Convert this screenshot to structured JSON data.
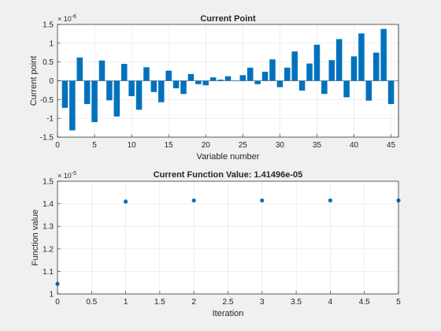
{
  "chart_data": [
    {
      "type": "bar",
      "title": "Current Point",
      "xlabel": "Variable number",
      "ylabel": "Current point",
      "exponent_base": "× 10",
      "exponent": "-6",
      "xlim": [
        0,
        46
      ],
      "ylim": [
        -1.5,
        1.5
      ],
      "xticks": [
        0,
        5,
        10,
        15,
        20,
        25,
        30,
        35,
        40,
        45
      ],
      "yticks": [
        -1.5,
        -1,
        -0.5,
        0,
        0.5,
        1,
        1.5
      ],
      "ytick_labels": [
        "-1.5",
        "-1",
        "-0.5",
        "0",
        "0.5",
        "1",
        "1.5"
      ],
      "grid": true,
      "color": "#0072BD",
      "x": [
        1,
        2,
        3,
        4,
        5,
        6,
        7,
        8,
        9,
        10,
        11,
        12,
        13,
        14,
        15,
        16,
        17,
        18,
        19,
        20,
        21,
        22,
        23,
        24,
        25,
        26,
        27,
        28,
        29,
        30,
        31,
        32,
        33,
        34,
        35,
        36,
        37,
        38,
        39,
        40,
        41,
        42,
        43,
        44,
        45
      ],
      "values": [
        -0.72,
        -1.32,
        0.62,
        -0.62,
        -1.1,
        0.54,
        -0.52,
        -0.95,
        0.45,
        -0.41,
        -0.77,
        0.36,
        -0.3,
        -0.57,
        0.27,
        -0.2,
        -0.35,
        0.18,
        -0.09,
        -0.12,
        0.09,
        0.03,
        0.12,
        0.01,
        0.15,
        0.35,
        -0.09,
        0.24,
        0.57,
        -0.17,
        0.35,
        0.78,
        -0.26,
        0.46,
        0.96,
        -0.35,
        0.55,
        1.11,
        -0.44,
        0.65,
        1.26,
        -0.53,
        0.75,
        1.38,
        -0.62
      ]
    },
    {
      "type": "scatter",
      "title": "Current Function Value: 1.41496e-05",
      "xlabel": "Iteration",
      "ylabel": "Function value",
      "exponent_base": "× 10",
      "exponent": "-5",
      "xlim": [
        0,
        5
      ],
      "ylim": [
        1.0,
        1.5
      ],
      "xticks": [
        0,
        0.5,
        1,
        1.5,
        2,
        2.5,
        3,
        3.5,
        4,
        4.5,
        5
      ],
      "xtick_labels": [
        "0",
        "0.5",
        "1",
        "1.5",
        "2",
        "2.5",
        "3",
        "3.5",
        "4",
        "4.5",
        "5"
      ],
      "yticks": [
        1.0,
        1.1,
        1.2,
        1.3,
        1.4,
        1.5
      ],
      "ytick_labels": [
        "1",
        "1.1",
        "1.2",
        "1.3",
        "1.4",
        "1.5"
      ],
      "grid": true,
      "color": "#0072BD",
      "x": [
        0,
        1,
        2,
        3,
        4,
        5
      ],
      "values": [
        1.045,
        1.41,
        1.415,
        1.415,
        1.415,
        1.415
      ]
    }
  ]
}
